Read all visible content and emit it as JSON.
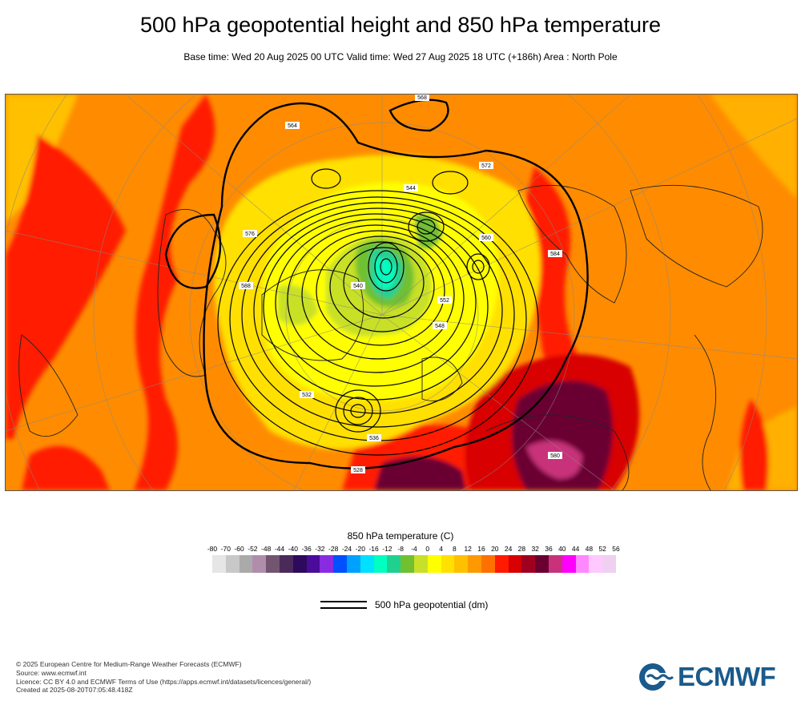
{
  "title": "500 hPa geopotential height and 850 hPa temperature",
  "subtitle": "Base time: Wed 20 Aug 2025 00 UTC Valid time: Wed 27 Aug 2025 18 UTC (+186h) Area : North Pole",
  "map": {
    "contour_labels": [
      "564",
      "568",
      "572",
      "576",
      "584",
      "588",
      "560",
      "552",
      "548",
      "544",
      "540",
      "536",
      "532",
      "528",
      "580"
    ]
  },
  "colorbar": {
    "title": "850 hPa temperature (C)",
    "ticks": [
      "-80",
      "-70",
      "-60",
      "-52",
      "-48",
      "-44",
      "-40",
      "-36",
      "-32",
      "-28",
      "-24",
      "-20",
      "-16",
      "-12",
      "-8",
      "-4",
      "0",
      "4",
      "8",
      "12",
      "16",
      "20",
      "24",
      "28",
      "32",
      "36",
      "40",
      "44",
      "48",
      "52",
      "56"
    ],
    "colors": [
      "#e6e6e6",
      "#c8c8c8",
      "#aaaaaa",
      "#b08eab",
      "#725670",
      "#4b2a5a",
      "#2d0a5c",
      "#4a0c9a",
      "#8a2be2",
      "#0050ff",
      "#00a0ff",
      "#00e0ff",
      "#00ffc0",
      "#20d090",
      "#70c030",
      "#c8e028",
      "#ffff00",
      "#ffe000",
      "#ffc000",
      "#ff9900",
      "#ff7000",
      "#ff1a00",
      "#d80000",
      "#a00020",
      "#6a0030",
      "#c8327a",
      "#ff00ff",
      "#ff88ff",
      "#ffc8ff",
      "#f0d0f0",
      "#e6e6e6"
    ]
  },
  "legend": {
    "label": "500 hPa geopotential (dm)"
  },
  "footer": {
    "lines": [
      "© 2025 European Centre for Medium-Range Weather Forecasts (ECMWF)",
      "Source: www.ecmwf.int",
      "Licence: CC BY 4.0 and ECMWF Terms of Use (https://apps.ecmwf.int/datasets/licences/general/)",
      "Created at 2025-08-20T07:05:48.418Z"
    ]
  },
  "logo": {
    "text": "ECMWF"
  }
}
